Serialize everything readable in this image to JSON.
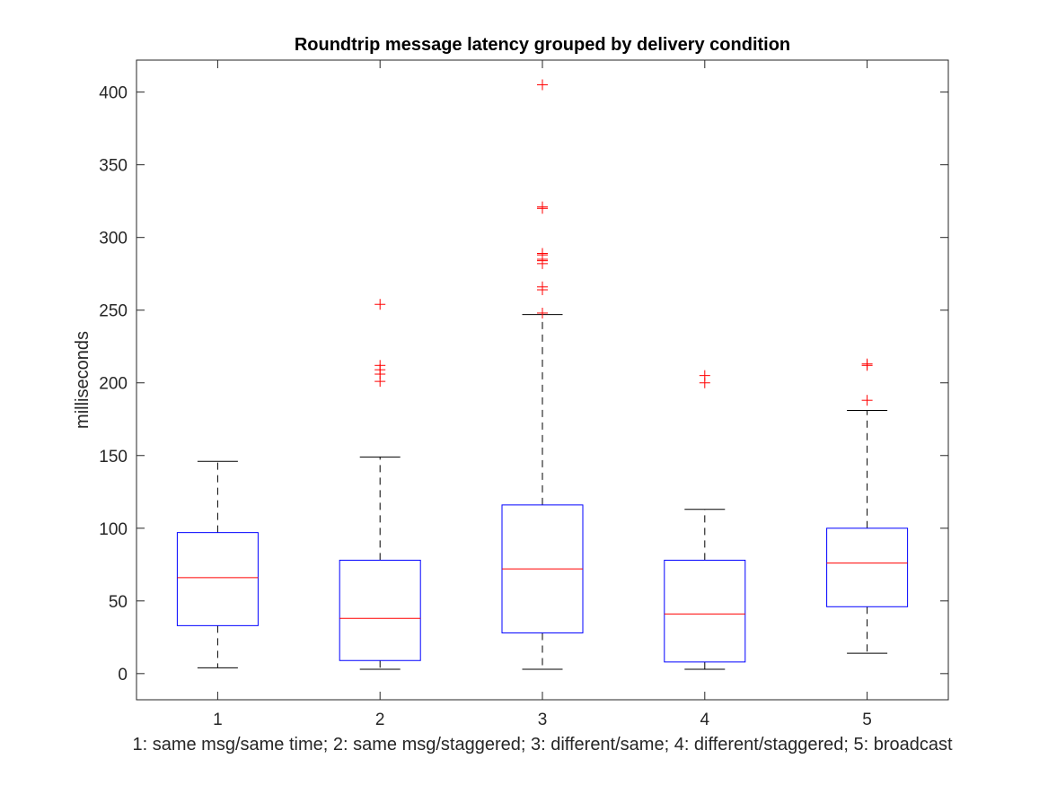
{
  "chart_data": {
    "type": "boxplot",
    "title": "Roundtrip message latency grouped by delivery condition",
    "xlabel": "1: same msg/same time; 2: same msg/staggered; 3: different/same; 4: different/staggered; 5: broadcast",
    "ylabel": "milliseconds",
    "ylim": [
      -18,
      422
    ],
    "yticks": [
      0,
      50,
      100,
      150,
      200,
      250,
      300,
      350,
      400
    ],
    "categories": [
      "1",
      "2",
      "3",
      "4",
      "5"
    ],
    "grid": false,
    "legend": "none",
    "colors": {
      "box": "#0000ff",
      "median": "#ff0000",
      "whisker": "#000000",
      "outlier": "#ff0000",
      "axes": "#262626"
    },
    "boxes": [
      {
        "category": "1",
        "whisker_low": 4,
        "q1": 33,
        "median": 66,
        "q3": 97,
        "whisker_high": 146,
        "outliers": []
      },
      {
        "category": "2",
        "whisker_low": 3,
        "q1": 9,
        "median": 38,
        "q3": 78,
        "whisker_high": 149,
        "outliers": [
          201,
          206,
          209,
          212,
          254
        ]
      },
      {
        "category": "3",
        "whisker_low": 3,
        "q1": 28,
        "median": 72,
        "q3": 116,
        "whisker_high": 247,
        "outliers": [
          248,
          264,
          266,
          282,
          284,
          285,
          288,
          289,
          320,
          321,
          405
        ]
      },
      {
        "category": "4",
        "whisker_low": 3,
        "q1": 8,
        "median": 41,
        "q3": 78,
        "whisker_high": 113,
        "outliers": [
          200,
          205
        ]
      },
      {
        "category": "5",
        "whisker_low": 14,
        "q1": 46,
        "median": 76,
        "q3": 100,
        "whisker_high": 181,
        "outliers": [
          188,
          212,
          213
        ]
      }
    ]
  }
}
